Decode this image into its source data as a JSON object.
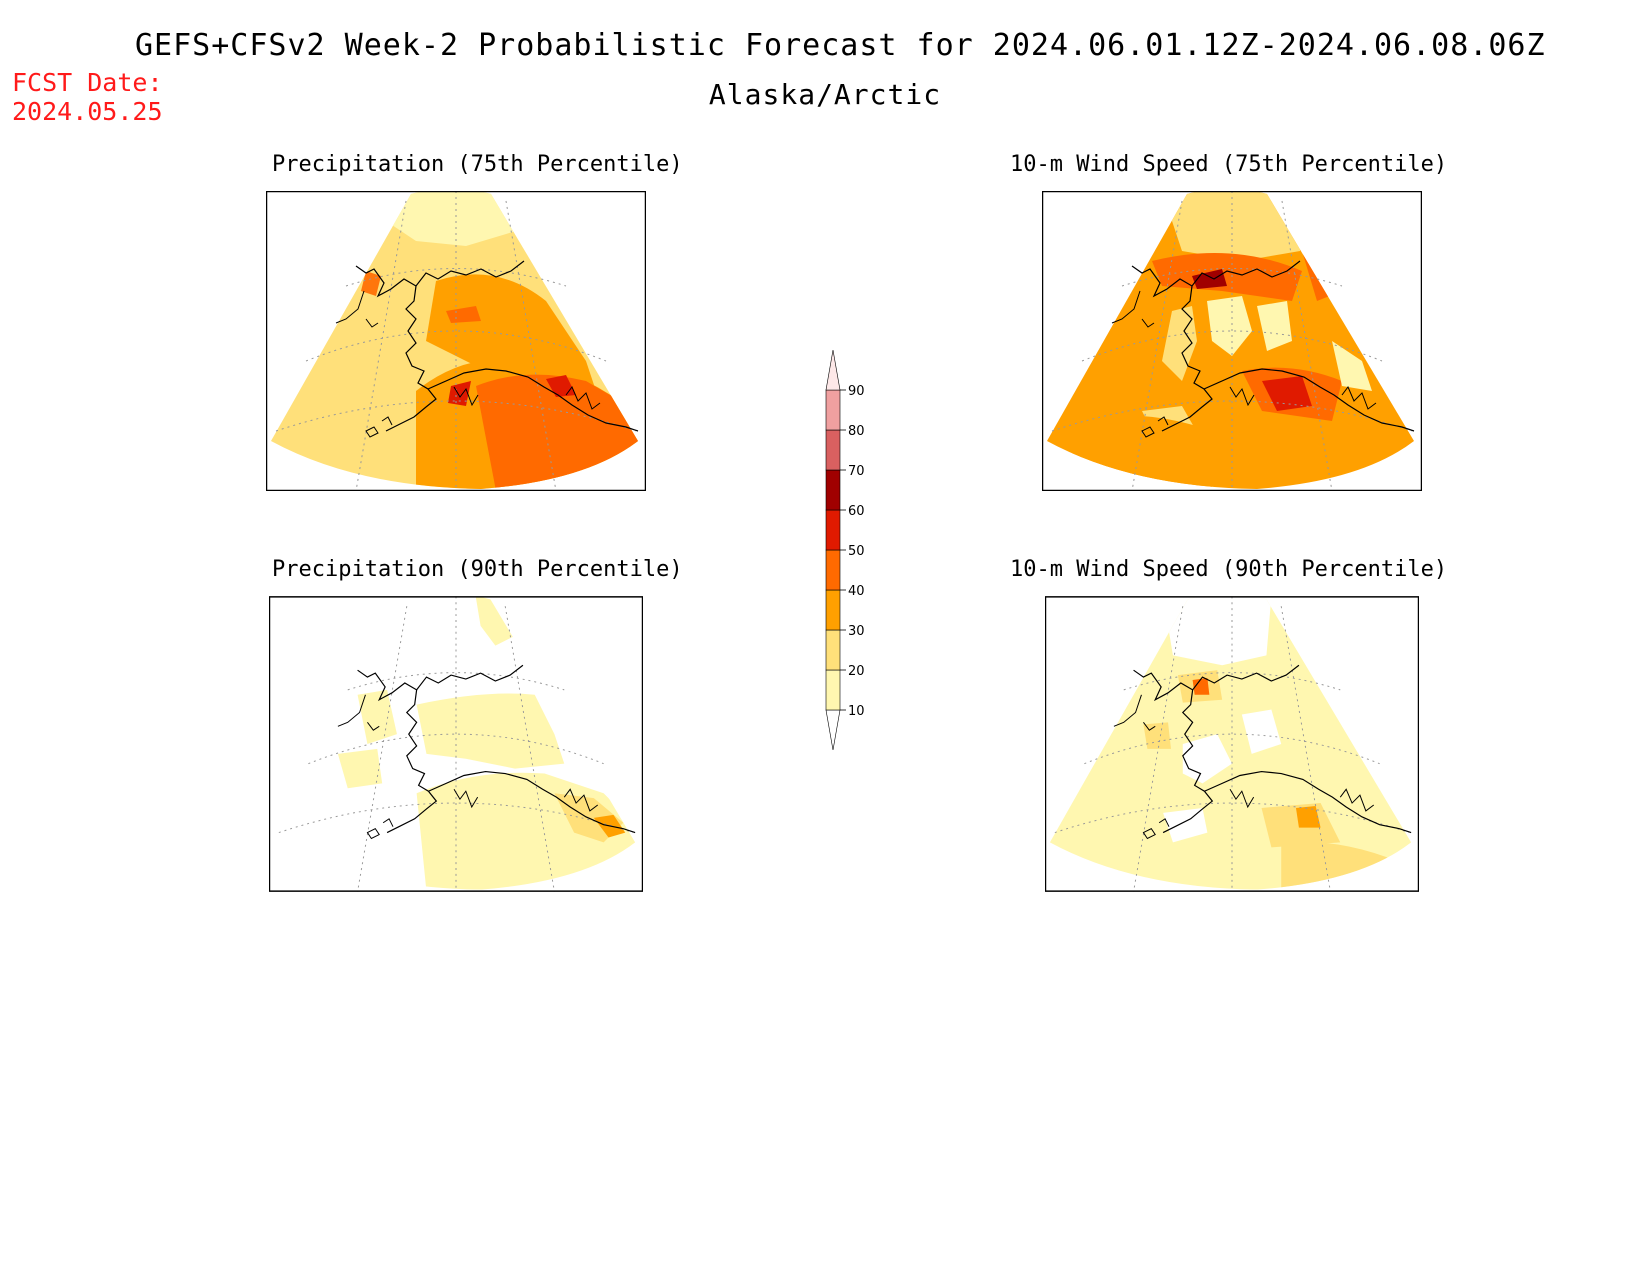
{
  "header": {
    "title": "GEFS+CFSv2 Week-2 Probabilistic Forecast for 2024.06.01.12Z-2024.06.08.06Z",
    "region": "Alaska/Arctic",
    "fcst_date_label": "FCST Date:",
    "fcst_date_value": "2024.05.25"
  },
  "panels": [
    {
      "id": "precip-75",
      "title": "Precipitation (75th Percentile)"
    },
    {
      "id": "wind-75",
      "title": "10-m Wind Speed (75th Percentile)"
    },
    {
      "id": "precip-90",
      "title": "Precipitation (90th Percentile)"
    },
    {
      "id": "wind-90",
      "title": "10-m Wind Speed (90th Percentile)"
    }
  ],
  "colorbar": {
    "levels": [
      "10",
      "20",
      "30",
      "40",
      "50",
      "60",
      "70",
      "80",
      "90"
    ],
    "colors": [
      "#ffffff",
      "#fff7b0",
      "#ffe07a",
      "#ffa000",
      "#ff6a00",
      "#e01a00",
      "#a00000",
      "#d96060",
      "#f0a0a0",
      "#fde8e8"
    ]
  }
}
